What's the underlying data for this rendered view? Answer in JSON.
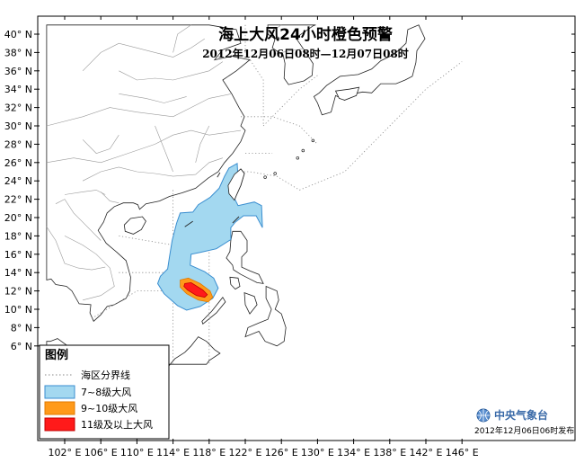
{
  "title": "海上大风24小时橙色预警",
  "subtitle": "2012年12月06日08时—12月07日08时",
  "issued": "2012年12月06日06时发布",
  "organization": "中央气象台",
  "legend": {
    "title": "图例",
    "items": [
      {
        "label": "海区分界线",
        "type": "dotted-line",
        "color": "#888888"
      },
      {
        "label": "7~8级大风",
        "type": "fill",
        "color": "#a3d8f0",
        "border": "#3a8ed0"
      },
      {
        "label": "9~10级大风",
        "type": "fill",
        "color": "#ff9a1a",
        "border": "#e07a00"
      },
      {
        "label": "11级及以上大风",
        "type": "fill",
        "color": "#ff1a1a",
        "border": "#c00000"
      }
    ]
  },
  "axes": {
    "x_ticks": [
      "102° E",
      "106° E",
      "110° E",
      "114° E",
      "118° E",
      "122° E",
      "126° E",
      "130° E",
      "134° E",
      "138° E",
      "142° E",
      "146° E"
    ],
    "y_ticks": [
      "40° N",
      "38° N",
      "36° N",
      "34° N",
      "32° N",
      "30° N",
      "28° N",
      "26° N",
      "24° N",
      "22° N",
      "20° N",
      "18° N",
      "16° N",
      "14° N",
      "12° N",
      "10° N",
      "8° N",
      "6° N"
    ],
    "lon_range": [
      100,
      148
    ],
    "lat_range": [
      4,
      41
    ]
  },
  "colors": {
    "land": "#ffffff",
    "coast": "#222222",
    "border": "#999999",
    "zone78": "#a3d8f0",
    "zone910": "#ff9a1a",
    "zone11": "#ff1a1a"
  }
}
